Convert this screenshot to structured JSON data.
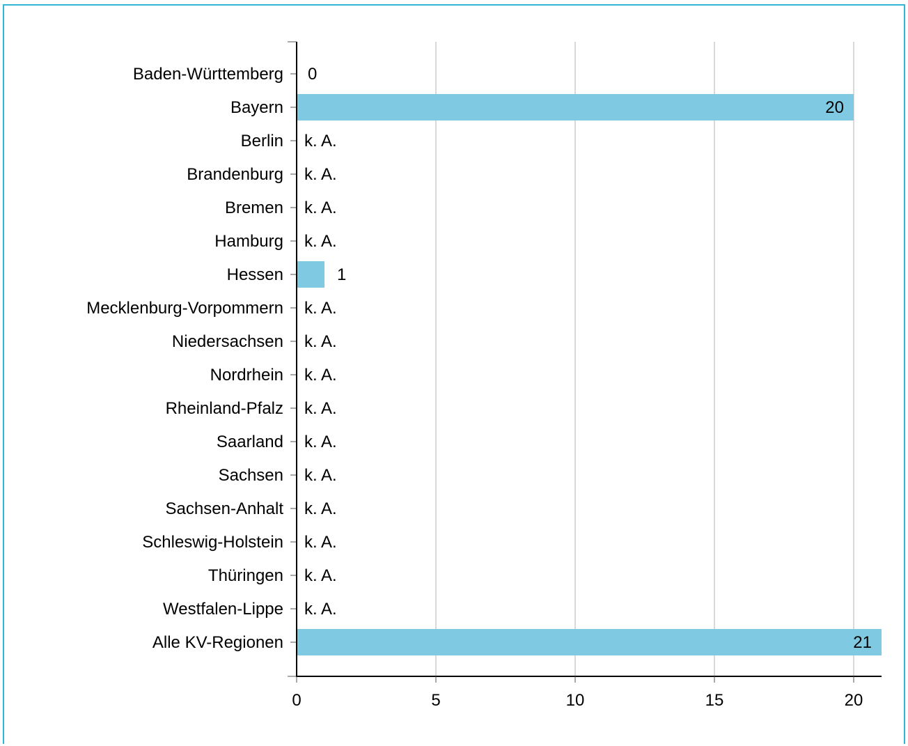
{
  "chart_data": {
    "type": "bar",
    "orientation": "horizontal",
    "categories": [
      "Baden-Württemberg",
      "Bayern",
      "Berlin",
      "Brandenburg",
      "Bremen",
      "Hamburg",
      "Hessen",
      "Mecklenburg-Vorpommern",
      "Niedersachsen",
      "Nordrhein",
      "Rheinland-Pfalz",
      "Saarland",
      "Sachsen",
      "Sachsen-Anhalt",
      "Schleswig-Holstein",
      "Thüringen",
      "Westfalen-Lippe",
      "Alle KV-Regionen"
    ],
    "values": [
      0,
      20,
      null,
      null,
      null,
      null,
      1,
      null,
      null,
      null,
      null,
      null,
      null,
      null,
      null,
      null,
      null,
      21
    ],
    "value_labels": [
      "0",
      "20",
      "k. A.",
      "k. A.",
      "k. A.",
      "k. A.",
      "1",
      "k. A.",
      "k. A.",
      "k. A.",
      "k. A.",
      "k. A.",
      "k. A.",
      "k. A.",
      "k. A.",
      "k. A.",
      "k. A.",
      "21"
    ],
    "xlim": [
      0,
      21
    ],
    "xticks": [
      0,
      5,
      10,
      15,
      20
    ],
    "grid": "vertical",
    "bar_color": "#7fcae2",
    "frame_color": "#33b5d6",
    "title": "",
    "xlabel": "",
    "ylabel": ""
  }
}
